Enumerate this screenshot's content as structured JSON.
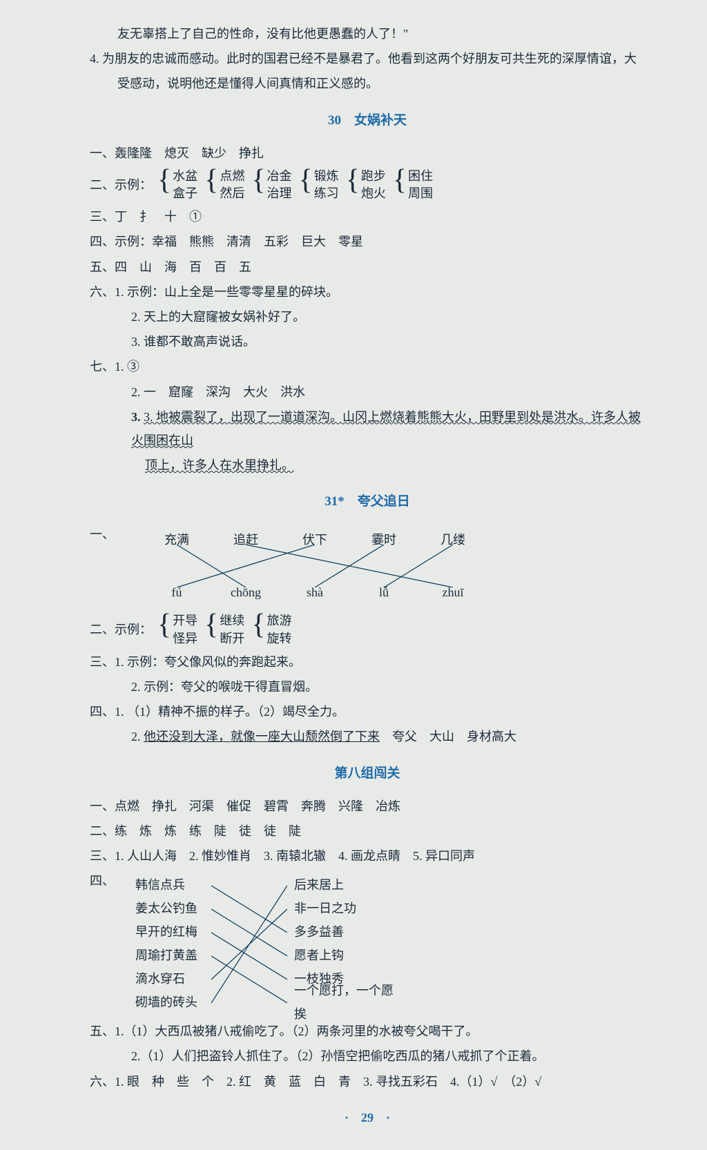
{
  "intro": {
    "line1": "友无辜搭上了自己的性命，没有比他更愚蠢的人了！\"",
    "line2a": "4. 为朋友的忠诚而感动。此时的国君已经不是暴君了。他看到这两个好朋友可共生死的深厚情谊，大",
    "line2b": "受感动，说明他还是懂得人间真情和正义感的。"
  },
  "s30": {
    "title": "30　女娲补天",
    "q1": "一、轰隆隆　熄灭　缺少　挣扎",
    "q2_prefix": "二、示例：",
    "q2_groups": [
      [
        "水盆",
        "盒子"
      ],
      [
        "点燃",
        "然后"
      ],
      [
        "冶金",
        "治理"
      ],
      [
        "锻炼",
        "练习"
      ],
      [
        "跑步",
        "炮火"
      ],
      [
        "困住",
        "周围"
      ]
    ],
    "q3": "三、丁　扌　十　①",
    "q4": "四、示例：幸福　熊熊　清清　五彩　巨大　零星",
    "q5": "五、四　山　海　百　百　五",
    "q6_1": "六、1. 示例：山上全是一些零零星星的碎块。",
    "q6_2": "2. 天上的大窟窿被女娲补好了。",
    "q6_3": "3. 谁都不敢高声说话。",
    "q7_1": "七、1. ③",
    "q7_2": "2. 一　窟窿　深沟　大火　洪水",
    "q7_3a": "3. 地被震裂了，出现了一道道深沟。山冈上燃烧着熊熊大火，田野里到处是洪水。许多人被火围困在山",
    "q7_3b": "顶上，许多人在水里挣扎。"
  },
  "s31": {
    "title": "31*　夸父追日",
    "q1_prefix": "一、",
    "q1_top": [
      "充满",
      "追赶",
      "伏下",
      "霎时",
      "几缕"
    ],
    "q1_bottom": [
      "fú",
      "chōng",
      "shà",
      "lǚ",
      "zhuī"
    ],
    "q1_lines": [
      [
        0,
        1
      ],
      [
        1,
        4
      ],
      [
        2,
        0
      ],
      [
        3,
        2
      ],
      [
        4,
        3
      ]
    ],
    "q2_prefix": "二、示例：",
    "q2_groups": [
      [
        "开导",
        "怪异"
      ],
      [
        "继续",
        "断开"
      ],
      [
        "旅游",
        "旋转"
      ]
    ],
    "q3_1": "三、1. 示例：夸父像风似的奔跑起来。",
    "q3_2": "2. 示例：夸父的喉咙干得直冒烟。",
    "q4_1": "四、1. （1）精神不振的样子。（2）竭尽全力。",
    "q4_2a": "2. ",
    "q4_2b": "他还没到大泽，就像一座大山颓然倒了下来",
    "q4_2c": "　夸父　大山　身材高大"
  },
  "s8": {
    "title": "第八组闯关",
    "q1": "一、点燃　挣扎　河渠　催促　碧霄　奔腾　兴隆　冶炼",
    "q2": "二、练　炼　炼　练　陡　徒　徒　陡",
    "q3": "三、1. 人山人海　2. 惟妙惟肖　3. 南辕北辙　4. 画龙点睛　5. 异口同声",
    "q4_prefix": "四、",
    "q4_left": [
      "韩信点兵",
      "姜太公钓鱼",
      "早开的红梅",
      "周瑜打黄盖",
      "滴水穿石",
      "砌墙的砖头"
    ],
    "q4_right": [
      "后来居上",
      "非一日之功",
      "多多益善",
      "愿者上钩",
      "一枝独秀",
      "一个愿打，一个愿挨"
    ],
    "q4_lines": [
      [
        0,
        2
      ],
      [
        1,
        3
      ],
      [
        2,
        4
      ],
      [
        3,
        5
      ],
      [
        4,
        1
      ],
      [
        5,
        0
      ]
    ],
    "q5_1": "五、1.（1）大西瓜被猪八戒偷吃了。（2）两条河里的水被夸父喝干了。",
    "q5_2": "2.（1）人们把盗铃人抓住了。（2）孙悟空把偷吃西瓜的猪八戒抓了个正着。",
    "q6": "六、1. 眼　种　些　个　2. 红　黄　蓝　白　青　3. 寻找五彩石　4.（1）√　（2）√"
  },
  "page": "·　29　·",
  "style": {
    "accent": "#1e6aa8",
    "text": "#1a2a3a",
    "bg": "#e8eae7"
  }
}
